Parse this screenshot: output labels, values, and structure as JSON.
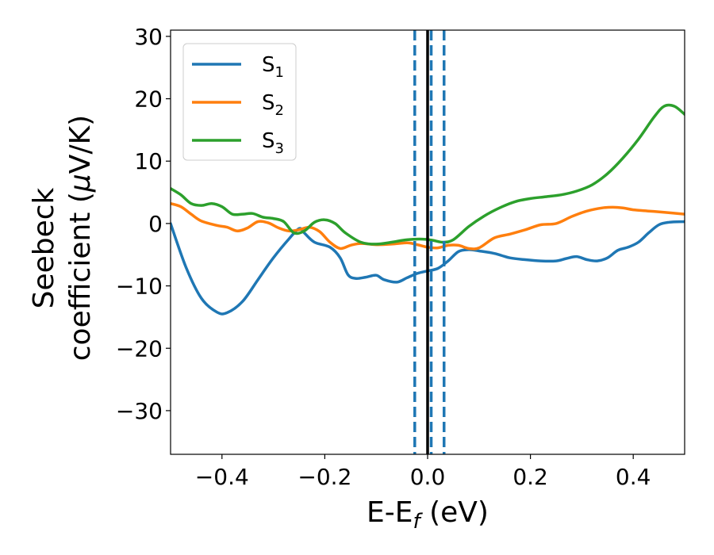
{
  "chart_data": {
    "type": "line",
    "xlabel": "E-E",
    "xlabel_sub": "f",
    "xlabel_unit": "(eV)",
    "ylabel_line1": "Seebeck",
    "ylabel_line2": "coefficient  (",
    "ylabel_mu": "μ",
    "ylabel_unit": "V/K)",
    "xlim": [
      -0.5,
      0.5
    ],
    "ylim": [
      -37,
      31
    ],
    "xticks": [
      -0.4,
      -0.2,
      0.0,
      0.2,
      0.4
    ],
    "xtick_labels": [
      "−0.4",
      "−0.2",
      "0.0",
      "0.2",
      "0.4"
    ],
    "yticks": [
      30,
      20,
      10,
      0,
      -10,
      -20,
      -30
    ],
    "ytick_labels": [
      "30",
      "20",
      "10",
      "0",
      "−10",
      "−20",
      "−30"
    ],
    "legend_position": "upper-left",
    "vlines": [
      {
        "x": 0.0,
        "color": "#000000",
        "style": "solid"
      },
      {
        "x": -0.025,
        "color": "#1f77b4",
        "style": "dashed"
      },
      {
        "x": 0.007,
        "color": "#1f77b4",
        "style": "dashed"
      },
      {
        "x": 0.032,
        "color": "#1f77b4",
        "style": "dashed"
      }
    ],
    "series": [
      {
        "name": "S",
        "sub": "1",
        "color": "#1f77b4",
        "points": [
          [
            -0.5,
            0
          ],
          [
            -0.47,
            -7
          ],
          [
            -0.44,
            -12
          ],
          [
            -0.41,
            -14.2
          ],
          [
            -0.39,
            -14.3
          ],
          [
            -0.36,
            -12.5
          ],
          [
            -0.33,
            -9
          ],
          [
            -0.3,
            -5.5
          ],
          [
            -0.27,
            -2.5
          ],
          [
            -0.25,
            -0.8
          ],
          [
            -0.24,
            -1.5
          ],
          [
            -0.22,
            -3
          ],
          [
            -0.19,
            -3.8
          ],
          [
            -0.17,
            -5.5
          ],
          [
            -0.155,
            -8.2
          ],
          [
            -0.14,
            -8.8
          ],
          [
            -0.12,
            -8.6
          ],
          [
            -0.1,
            -8.3
          ],
          [
            -0.085,
            -9
          ],
          [
            -0.06,
            -9.4
          ],
          [
            -0.04,
            -8.7
          ],
          [
            -0.02,
            -8
          ],
          [
            0,
            -7.6
          ],
          [
            0.02,
            -7.2
          ],
          [
            0.04,
            -6
          ],
          [
            0.06,
            -4.5
          ],
          [
            0.08,
            -4.2
          ],
          [
            0.1,
            -4.4
          ],
          [
            0.13,
            -4.8
          ],
          [
            0.16,
            -5.5
          ],
          [
            0.19,
            -5.8
          ],
          [
            0.22,
            -6
          ],
          [
            0.25,
            -6
          ],
          [
            0.27,
            -5.6
          ],
          [
            0.29,
            -5.3
          ],
          [
            0.31,
            -5.8
          ],
          [
            0.33,
            -6
          ],
          [
            0.35,
            -5.5
          ],
          [
            0.37,
            -4.3
          ],
          [
            0.39,
            -3.8
          ],
          [
            0.41,
            -3
          ],
          [
            0.43,
            -1.5
          ],
          [
            0.45,
            -0.2
          ],
          [
            0.47,
            0.2
          ],
          [
            0.5,
            0.3
          ]
        ]
      },
      {
        "name": "S",
        "sub": "2",
        "color": "#ff7f0e",
        "points": [
          [
            -0.5,
            3.2
          ],
          [
            -0.48,
            2.7
          ],
          [
            -0.46,
            1.5
          ],
          [
            -0.44,
            0.4
          ],
          [
            -0.41,
            -0.3
          ],
          [
            -0.39,
            -0.6
          ],
          [
            -0.37,
            -1.2
          ],
          [
            -0.35,
            -0.7
          ],
          [
            -0.33,
            0.3
          ],
          [
            -0.31,
            0.1
          ],
          [
            -0.29,
            -0.7
          ],
          [
            -0.27,
            -1.2
          ],
          [
            -0.25,
            -1
          ],
          [
            -0.23,
            -0.6
          ],
          [
            -0.21,
            -1.3
          ],
          [
            -0.19,
            -3
          ],
          [
            -0.17,
            -4
          ],
          [
            -0.15,
            -3.5
          ],
          [
            -0.13,
            -3.2
          ],
          [
            -0.1,
            -3.4
          ],
          [
            -0.07,
            -3.3
          ],
          [
            -0.04,
            -3.1
          ],
          [
            -0.02,
            -3.4
          ],
          [
            0,
            -3.8
          ],
          [
            0.02,
            -3.9
          ],
          [
            0.04,
            -3.5
          ],
          [
            0.06,
            -3.5
          ],
          [
            0.08,
            -4
          ],
          [
            0.1,
            -3.9
          ],
          [
            0.13,
            -2.3
          ],
          [
            0.16,
            -1.7
          ],
          [
            0.19,
            -1
          ],
          [
            0.22,
            -0.2
          ],
          [
            0.25,
            0
          ],
          [
            0.28,
            1.1
          ],
          [
            0.31,
            2
          ],
          [
            0.34,
            2.5
          ],
          [
            0.36,
            2.6
          ],
          [
            0.38,
            2.5
          ],
          [
            0.4,
            2.2
          ],
          [
            0.43,
            2
          ],
          [
            0.46,
            1.8
          ],
          [
            0.5,
            1.5
          ]
        ]
      },
      {
        "name": "S",
        "sub": "3",
        "color": "#2ca02c",
        "points": [
          [
            -0.5,
            5.6
          ],
          [
            -0.48,
            4.6
          ],
          [
            -0.46,
            3.2
          ],
          [
            -0.44,
            2.9
          ],
          [
            -0.42,
            3.2
          ],
          [
            -0.4,
            2.7
          ],
          [
            -0.38,
            1.5
          ],
          [
            -0.36,
            1.5
          ],
          [
            -0.34,
            1.6
          ],
          [
            -0.32,
            1
          ],
          [
            -0.3,
            0.8
          ],
          [
            -0.28,
            0.3
          ],
          [
            -0.26,
            -1.5
          ],
          [
            -0.24,
            -1.2
          ],
          [
            -0.22,
            0.2
          ],
          [
            -0.2,
            0.6
          ],
          [
            -0.18,
            0
          ],
          [
            -0.16,
            -1.5
          ],
          [
            -0.13,
            -3
          ],
          [
            -0.1,
            -3.3
          ],
          [
            -0.07,
            -3
          ],
          [
            -0.04,
            -2.6
          ],
          [
            -0.01,
            -2.5
          ],
          [
            0.01,
            -2.7
          ],
          [
            0.03,
            -3
          ],
          [
            0.05,
            -2.6
          ],
          [
            0.08,
            -0.5
          ],
          [
            0.11,
            1.2
          ],
          [
            0.14,
            2.5
          ],
          [
            0.17,
            3.5
          ],
          [
            0.2,
            4
          ],
          [
            0.23,
            4.3
          ],
          [
            0.26,
            4.6
          ],
          [
            0.29,
            5.2
          ],
          [
            0.32,
            6.2
          ],
          [
            0.35,
            8
          ],
          [
            0.38,
            10.5
          ],
          [
            0.41,
            13.5
          ],
          [
            0.44,
            17
          ],
          [
            0.46,
            18.8
          ],
          [
            0.48,
            18.8
          ],
          [
            0.5,
            17.5
          ]
        ]
      }
    ]
  }
}
